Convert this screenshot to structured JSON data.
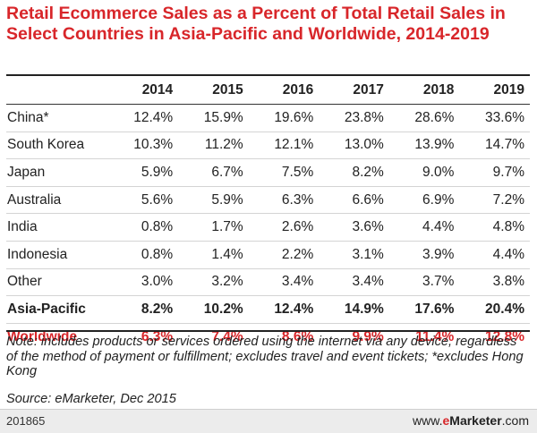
{
  "chart_data": {
    "type": "table",
    "title": "Retail Ecommerce Sales as a Percent of Total Retail Sales in Select Countries in Asia-Pacific and Worldwide, 2014-2019",
    "columns": [
      "2014",
      "2015",
      "2016",
      "2017",
      "2018",
      "2019"
    ],
    "rows": [
      {
        "label": "China*",
        "values": [
          "12.4%",
          "15.9%",
          "19.6%",
          "23.8%",
          "28.6%",
          "33.6%"
        ]
      },
      {
        "label": "South Korea",
        "values": [
          "10.3%",
          "11.2%",
          "12.1%",
          "13.0%",
          "13.9%",
          "14.7%"
        ]
      },
      {
        "label": "Japan",
        "values": [
          "5.9%",
          "6.7%",
          "7.5%",
          "8.2%",
          "9.0%",
          "9.7%"
        ]
      },
      {
        "label": "Australia",
        "values": [
          "5.6%",
          "5.9%",
          "6.3%",
          "6.6%",
          "6.9%",
          "7.2%"
        ]
      },
      {
        "label": "India",
        "values": [
          "0.8%",
          "1.7%",
          "2.6%",
          "3.6%",
          "4.4%",
          "4.8%"
        ]
      },
      {
        "label": "Indonesia",
        "values": [
          "0.8%",
          "1.4%",
          "2.2%",
          "3.1%",
          "3.9%",
          "4.4%"
        ]
      },
      {
        "label": "Other",
        "values": [
          "3.0%",
          "3.2%",
          "3.4%",
          "3.4%",
          "3.7%",
          "3.8%"
        ]
      },
      {
        "label": "Asia-Pacific",
        "values": [
          "8.2%",
          "10.2%",
          "12.4%",
          "14.9%",
          "17.6%",
          "20.4%"
        ]
      },
      {
        "label": "Worldwide",
        "values": [
          "6.3%",
          "7.4%",
          "8.6%",
          "9.9%",
          "11.4%",
          "12.8%"
        ]
      }
    ],
    "note": "Note: includes products or services ordered using the internet via any device, regardless of the method of payment or fulfillment; excludes travel and event tickets; *excludes Hong Kong",
    "source": "Source: eMarketer, Dec 2015"
  },
  "footer": {
    "chart_id": "201865",
    "brand_prefix": "www.",
    "brand_e": "e",
    "brand_marketer": "Marketer",
    "brand_suffix": ".com"
  },
  "colors": {
    "accent": "#d8262a",
    "text": "#222222",
    "footer_bg": "#ececec"
  }
}
